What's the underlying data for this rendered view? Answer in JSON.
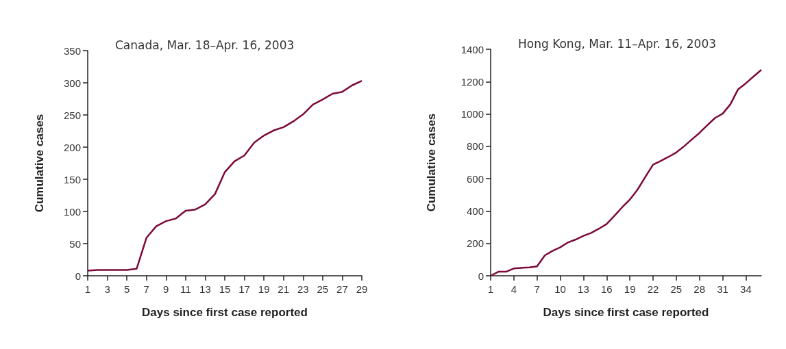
{
  "chart_data": [
    {
      "type": "line",
      "title": "Canada, Mar. 18–Apr. 16, 2003",
      "xlabel": "Days since first case reported",
      "ylabel": "Cumulative cases",
      "x": [
        1,
        2,
        3,
        4,
        5,
        6,
        7,
        8,
        9,
        10,
        11,
        12,
        13,
        14,
        15,
        16,
        17,
        18,
        19,
        20,
        21,
        22,
        23,
        24,
        25,
        26,
        27,
        28,
        29
      ],
      "series": [
        {
          "color": "#7b0a3a",
          "values": [
            8,
            9,
            9,
            9,
            9,
            11,
            59,
            77,
            85,
            89,
            101,
            103,
            111,
            127,
            161,
            178,
            187,
            207,
            218,
            226,
            231,
            240,
            251,
            266,
            274,
            283,
            286,
            296,
            303
          ]
        }
      ],
      "xlim": [
        1,
        29
      ],
      "xticks": [
        1,
        3,
        5,
        7,
        9,
        11,
        13,
        15,
        17,
        19,
        21,
        23,
        25,
        27,
        29
      ],
      "ylim": [
        0,
        350
      ],
      "yticks": [
        0,
        50,
        100,
        150,
        200,
        250,
        300,
        350
      ],
      "grid": false,
      "marker": "none",
      "line_style": "solid"
    },
    {
      "type": "line",
      "title": "Hong Kong, Mar. 11–Apr. 16, 2003",
      "xlabel": "Days since first case reported",
      "ylabel": "Cumulative cases",
      "x": [
        1,
        2,
        3,
        4,
        5,
        6,
        7,
        8,
        9,
        10,
        11,
        12,
        13,
        14,
        15,
        16,
        17,
        18,
        19,
        20,
        21,
        22,
        23,
        24,
        25,
        26,
        27,
        28,
        29,
        30,
        31,
        32,
        33,
        34,
        35,
        36
      ],
      "series": [
        {
          "color": "#7b0a3a",
          "values": [
            0,
            25,
            25,
            45,
            49,
            52,
            58,
            126,
            154,
            176,
            206,
            224,
            247,
            265,
            291,
            320,
            371,
            423,
            471,
            533,
            611,
            687,
            710,
            735,
            762,
            800,
            842,
            883,
            930,
            975,
            1002,
            1060,
            1153,
            1190,
            1232,
            1273
          ]
        }
      ],
      "xlim": [
        1,
        36
      ],
      "xticks": [
        1,
        4,
        7,
        10,
        13,
        16,
        19,
        22,
        25,
        28,
        31,
        34
      ],
      "ylim": [
        0,
        1400
      ],
      "yticks": [
        0,
        200,
        400,
        600,
        800,
        1000,
        1200,
        1400
      ],
      "grid": false,
      "marker": "none",
      "line_style": "solid"
    }
  ]
}
